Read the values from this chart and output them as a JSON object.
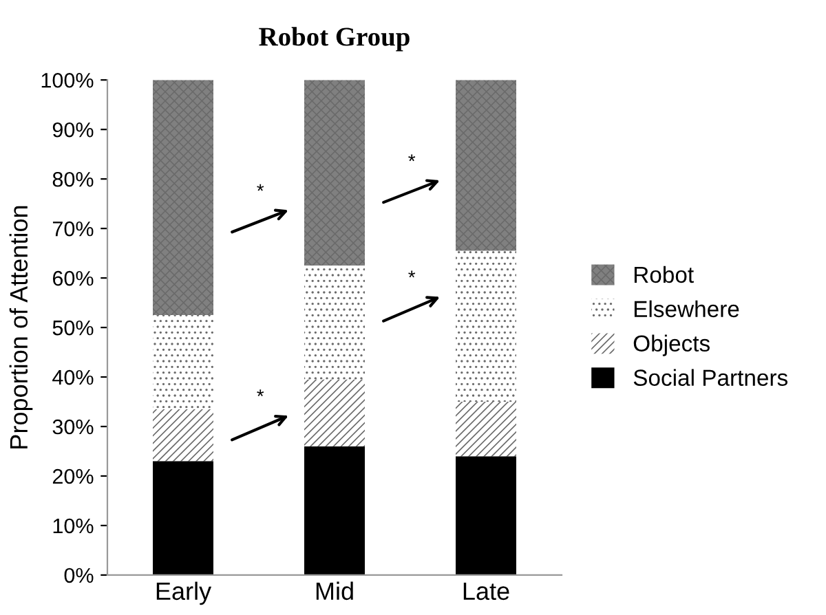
{
  "chart_data": {
    "type": "bar",
    "stacked": true,
    "title": "Robot Group",
    "ylabel": "Proportion of Attention",
    "categories": [
      "Early",
      "Mid",
      "Late"
    ],
    "series": [
      {
        "name": "Social Partners",
        "color": "#000000",
        "values": [
          23,
          26,
          24
        ]
      },
      {
        "name": "Objects",
        "color": "#ffffff",
        "values": [
          10.5,
          13.5,
          11
        ]
      },
      {
        "name": "Elsewhere",
        "color": "#ffffff",
        "values": [
          19,
          23,
          30.5
        ]
      },
      {
        "name": "Robot",
        "color": "#808080",
        "values": [
          47.5,
          37.5,
          34.5
        ]
      }
    ],
    "ylim": [
      0,
      100
    ],
    "yticks": [
      {
        "value": 0,
        "label": "0%"
      },
      {
        "value": 10,
        "label": "10%"
      },
      {
        "value": 20,
        "label": "20%"
      },
      {
        "value": 30,
        "label": "30%"
      },
      {
        "value": 40,
        "label": "40%"
      },
      {
        "value": 50,
        "label": "50%"
      },
      {
        "value": 60,
        "label": "60%"
      },
      {
        "value": 70,
        "label": "70%"
      },
      {
        "value": 80,
        "label": "80%"
      },
      {
        "value": 90,
        "label": "90%"
      },
      {
        "value": 100,
        "label": "100%"
      }
    ],
    "grid": false,
    "legend": "right",
    "annotations": [
      "*",
      "*",
      "*",
      "*"
    ]
  }
}
